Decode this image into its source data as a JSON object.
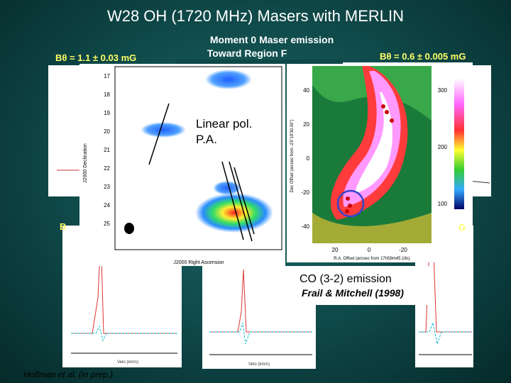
{
  "slide": {
    "title": "W28 OH (1720 MHz) Masers with MERLIN",
    "left_field": "Bθ = 1.1 ± 0.03 mG",
    "right_field": "Bθ = 0.6 ± 0.005 mG",
    "moment_caption": [
      "Moment 0 Maser emission",
      "Toward Region F"
    ],
    "polarization_caption": [
      "Linear pol.",
      "P.A."
    ],
    "co_caption": "CO (3-2) emission",
    "co_citation": "Frail & Mitchell (1998)",
    "maser_citation": "Hoffman et al. (in prep.)",
    "partial_left": "B",
    "partial_right": "G",
    "maser_map": {
      "dec_ticks": [
        "17",
        "18",
        "19",
        "20",
        "21",
        "22",
        "23",
        "24",
        "25"
      ],
      "x_label": "J2000 Right Ascension",
      "y_label": "J2000 Declination"
    },
    "co_map": {
      "y_ticks": [
        "40",
        "20",
        "0",
        "-20",
        "-40"
      ],
      "x_ticks": [
        "20",
        "0",
        "-20"
      ],
      "colorbar_ticks": [
        "300",
        "200",
        "100"
      ],
      "x_label": "R.A. Offset (arcsec from 17h58m45.18s)",
      "y_label": "Dec Offset (arcsec from -23°19'30.00\")"
    },
    "spectrum_axis": "Velo (km/s)"
  }
}
